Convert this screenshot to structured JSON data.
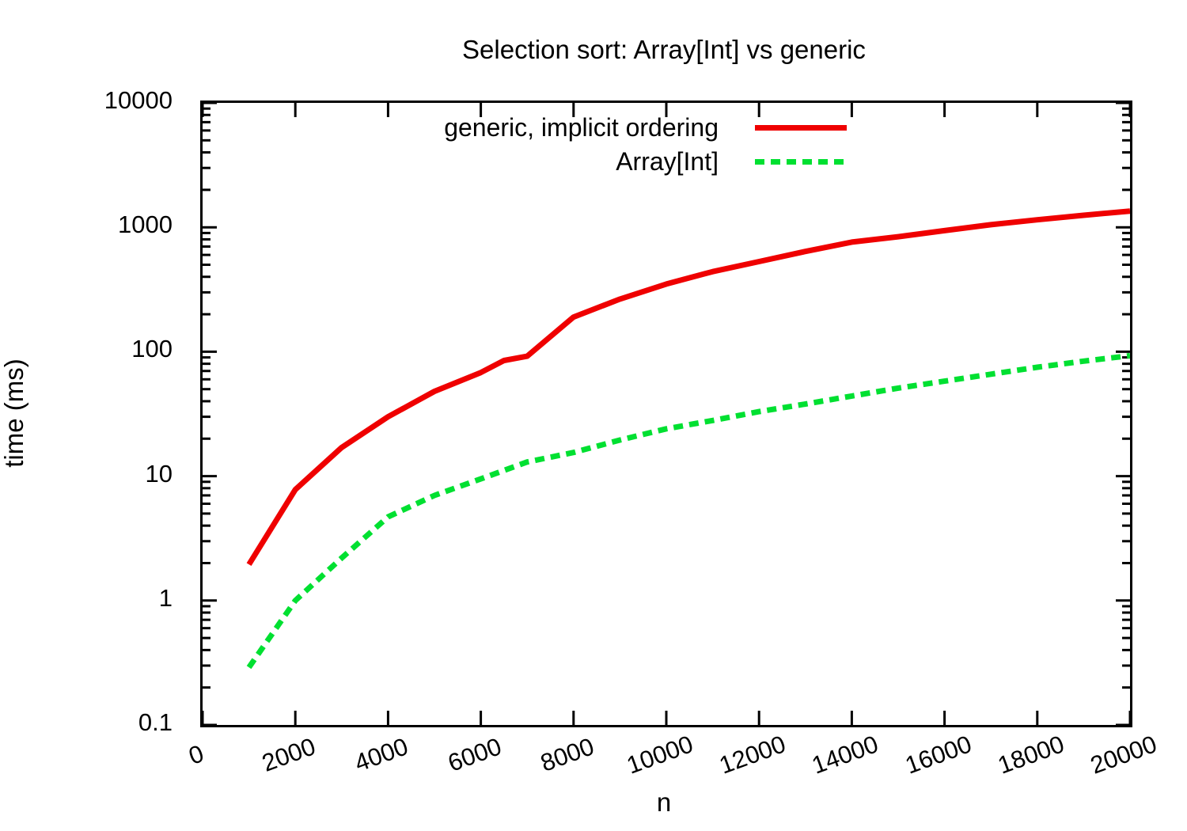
{
  "title": "Selection sort: Array[Int] vs generic",
  "chart_data": {
    "type": "line",
    "title": "Selection sort: Array[Int] vs generic",
    "xlabel": "n",
    "ylabel": "time (ms)",
    "x_scale": "linear",
    "y_scale": "log10",
    "xlim": [
      0,
      20000
    ],
    "ylim": [
      0.1,
      10000
    ],
    "grid": false,
    "legend_position": "inside top-center, text right-aligned with line sample at right",
    "background": "#ffffff",
    "border_color": "#000000",
    "x_ticks": {
      "values": [
        0,
        2000,
        4000,
        6000,
        8000,
        10000,
        12000,
        14000,
        16000,
        18000,
        20000
      ],
      "labels": [
        "0",
        "2000",
        "4000",
        "6000",
        "8000",
        "10000",
        "12000",
        "14000",
        "16000",
        "18000",
        "20000"
      ]
    },
    "y_ticks": {
      "values": [
        10000,
        1000,
        100,
        10,
        1,
        0.1
      ],
      "labels": [
        "10000",
        "1000",
        "100",
        "10",
        "1",
        "0.1"
      ]
    },
    "series": [
      {
        "name": "generic, implicit ordering",
        "color": "#ef0000",
        "style": "solid",
        "points": [
          [
            1000,
            1.95
          ],
          [
            2000,
            7.8
          ],
          [
            3000,
            17
          ],
          [
            4000,
            30
          ],
          [
            5000,
            48
          ],
          [
            6000,
            68
          ],
          [
            6500,
            85
          ],
          [
            7000,
            92
          ],
          [
            8000,
            190
          ],
          [
            9000,
            265
          ],
          [
            10000,
            350
          ],
          [
            11000,
            440
          ],
          [
            12000,
            530
          ],
          [
            13000,
            640
          ],
          [
            14000,
            760
          ],
          [
            15000,
            840
          ],
          [
            16000,
            940
          ],
          [
            17000,
            1050
          ],
          [
            18000,
            1150
          ],
          [
            19000,
            1250
          ],
          [
            20000,
            1350
          ]
        ]
      },
      {
        "name": "Array[Int]",
        "color": "#00e031",
        "style": "dashed",
        "points": [
          [
            1000,
            0.29
          ],
          [
            2000,
            1.0
          ],
          [
            3000,
            2.2
          ],
          [
            4000,
            4.7
          ],
          [
            5000,
            7.0
          ],
          [
            6000,
            9.5
          ],
          [
            7000,
            13
          ],
          [
            8000,
            15.5
          ],
          [
            9000,
            19.5
          ],
          [
            10000,
            24
          ],
          [
            11000,
            28
          ],
          [
            12000,
            33
          ],
          [
            13000,
            38
          ],
          [
            14000,
            44
          ],
          [
            15000,
            51
          ],
          [
            16000,
            58
          ],
          [
            17000,
            66
          ],
          [
            18000,
            75
          ],
          [
            19000,
            84
          ],
          [
            20000,
            93
          ]
        ]
      }
    ]
  }
}
